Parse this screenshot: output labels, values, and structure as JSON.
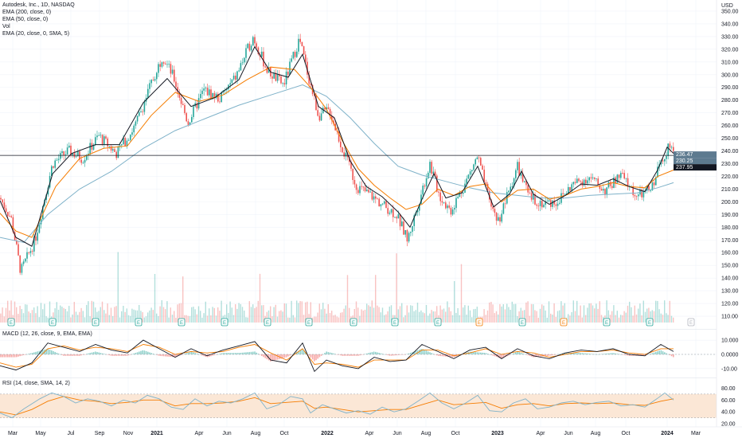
{
  "header": {
    "symbol_line": "Autodesk, Inc., 1D, NASDAQ",
    "ind_ema200": "EMA (200, close, 0)",
    "ind_ema50": "EMA (50, close, 0)",
    "ind_vol": "Vol",
    "ind_ema20": "EMA (20, close, 0, SMA, 5)",
    "macd_label": "MACD (12, 26, close, 9, EMA, EMA)",
    "rsi_label": "RSI (14, close, SMA, 14, 2)",
    "currency": "USD"
  },
  "colors": {
    "up": "#26a69a",
    "down": "#ef5350",
    "ema_fast": "#131722",
    "ema_mid": "#f57c00",
    "ema_slow": "#7fb2c9",
    "rsi_band": "#fbe7d6",
    "grid": "#f0f3fa",
    "event_earnings": "#26a69a",
    "event_other": "#f57c00",
    "price_tag": "#5d7a8f",
    "price_tag2": "#131722"
  },
  "chart_data": {
    "type": "candlestick",
    "price_axis": {
      "ticks": [
        "350.00",
        "340.00",
        "330.00",
        "320.00",
        "310.00",
        "300.00",
        "290.00",
        "280.00",
        "270.00",
        "260.00",
        "250.00",
        "240.00",
        "230.00",
        "220.00",
        "210.00",
        "200.00",
        "190.00",
        "180.00",
        "170.00",
        "160.00",
        "150.00",
        "140.00",
        "130.00",
        "120.00",
        "110.00"
      ],
      "range": [
        105,
        355
      ]
    },
    "x_axis": {
      "labels": [
        "Mar",
        "May",
        "Jul",
        "Sep",
        "Nov",
        "2021",
        "Apr",
        "Jun",
        "Aug",
        "Oct",
        "2022",
        "Apr",
        "Jun",
        "Aug",
        "Oct",
        "2023",
        "Apr",
        "Jun",
        "Aug",
        "Oct",
        "2024",
        "Mar"
      ],
      "bold": [
        "2021",
        "2022",
        "2023",
        "2024"
      ]
    },
    "price_tags": [
      "236.47",
      "230.25",
      "237.95"
    ],
    "horizontal_line": 236.5,
    "price_path": [
      [
        0,
        203
      ],
      [
        14,
        187
      ],
      [
        26,
        145
      ],
      [
        44,
        170
      ],
      [
        66,
        230
      ],
      [
        86,
        240
      ],
      [
        104,
        234
      ],
      [
        124,
        252
      ],
      [
        146,
        238
      ],
      [
        170,
        260
      ],
      [
        190,
        293
      ],
      [
        204,
        315
      ],
      [
        218,
        298
      ],
      [
        236,
        262
      ],
      [
        256,
        288
      ],
      [
        276,
        281
      ],
      [
        296,
        298
      ],
      [
        318,
        330
      ],
      [
        336,
        303
      ],
      [
        356,
        292
      ],
      [
        376,
        328
      ],
      [
        388,
        297
      ],
      [
        400,
        268
      ],
      [
        414,
        272
      ],
      [
        430,
        242
      ],
      [
        448,
        212
      ],
      [
        466,
        205
      ],
      [
        482,
        197
      ],
      [
        498,
        190
      ],
      [
        512,
        170
      ],
      [
        524,
        196
      ],
      [
        540,
        230
      ],
      [
        552,
        205
      ],
      [
        566,
        193
      ],
      [
        584,
        214
      ],
      [
        600,
        236
      ],
      [
        614,
        201
      ],
      [
        626,
        185
      ],
      [
        638,
        206
      ],
      [
        650,
        228
      ],
      [
        664,
        204
      ],
      [
        680,
        199
      ],
      [
        700,
        200
      ],
      [
        720,
        214
      ],
      [
        740,
        219
      ],
      [
        760,
        209
      ],
      [
        780,
        221
      ],
      [
        800,
        204
      ],
      [
        818,
        210
      ],
      [
        830,
        232
      ],
      [
        840,
        244
      ],
      [
        846,
        236
      ]
    ],
    "ema_fast": [
      [
        0,
        201
      ],
      [
        20,
        172
      ],
      [
        40,
        165
      ],
      [
        66,
        222
      ],
      [
        90,
        238
      ],
      [
        120,
        245
      ],
      [
        150,
        245
      ],
      [
        180,
        278
      ],
      [
        210,
        297
      ],
      [
        240,
        275
      ],
      [
        270,
        282
      ],
      [
        300,
        296
      ],
      [
        320,
        322
      ],
      [
        340,
        302
      ],
      [
        362,
        298
      ],
      [
        380,
        316
      ],
      [
        400,
        275
      ],
      [
        420,
        266
      ],
      [
        440,
        232
      ],
      [
        460,
        212
      ],
      [
        480,
        204
      ],
      [
        500,
        192
      ],
      [
        515,
        180
      ],
      [
        530,
        202
      ],
      [
        545,
        222
      ],
      [
        560,
        203
      ],
      [
        580,
        207
      ],
      [
        600,
        228
      ],
      [
        620,
        196
      ],
      [
        640,
        206
      ],
      [
        655,
        224
      ],
      [
        670,
        206
      ],
      [
        690,
        198
      ],
      [
        710,
        205
      ],
      [
        730,
        214
      ],
      [
        750,
        213
      ],
      [
        770,
        218
      ],
      [
        790,
        212
      ],
      [
        810,
        208
      ],
      [
        826,
        225
      ],
      [
        838,
        243
      ],
      [
        846,
        238
      ]
    ],
    "ema_mid": [
      [
        0,
        191
      ],
      [
        20,
        177
      ],
      [
        40,
        172
      ],
      [
        70,
        212
      ],
      [
        100,
        234
      ],
      [
        130,
        242
      ],
      [
        160,
        244
      ],
      [
        190,
        268
      ],
      [
        220,
        286
      ],
      [
        250,
        279
      ],
      [
        280,
        284
      ],
      [
        310,
        296
      ],
      [
        340,
        306
      ],
      [
        370,
        304
      ],
      [
        390,
        290
      ],
      [
        410,
        273
      ],
      [
        430,
        248
      ],
      [
        450,
        226
      ],
      [
        470,
        213
      ],
      [
        490,
        203
      ],
      [
        510,
        194
      ],
      [
        530,
        198
      ],
      [
        550,
        210
      ],
      [
        570,
        205
      ],
      [
        590,
        212
      ],
      [
        610,
        214
      ],
      [
        630,
        200
      ],
      [
        650,
        209
      ],
      [
        670,
        210
      ],
      [
        690,
        202
      ],
      [
        710,
        205
      ],
      [
        730,
        210
      ],
      [
        750,
        212
      ],
      [
        770,
        215
      ],
      [
        790,
        212
      ],
      [
        810,
        211
      ],
      [
        826,
        220
      ],
      [
        846,
        225
      ]
    ],
    "ema_slow": [
      [
        0,
        172
      ],
      [
        30,
        168
      ],
      [
        60,
        190
      ],
      [
        100,
        210
      ],
      [
        140,
        224
      ],
      [
        180,
        242
      ],
      [
        220,
        256
      ],
      [
        260,
        266
      ],
      [
        300,
        276
      ],
      [
        340,
        284
      ],
      [
        380,
        292
      ],
      [
        410,
        283
      ],
      [
        440,
        266
      ],
      [
        470,
        246
      ],
      [
        500,
        228
      ],
      [
        530,
        221
      ],
      [
        560,
        216
      ],
      [
        590,
        211
      ],
      [
        620,
        207
      ],
      [
        650,
        205
      ],
      [
        680,
        203
      ],
      [
        710,
        203
      ],
      [
        740,
        205
      ],
      [
        770,
        206
      ],
      [
        800,
        207
      ],
      [
        826,
        211
      ],
      [
        846,
        215
      ]
    ],
    "macd": {
      "ticks": [
        "10.000",
        "0.0000",
        "-10.00"
      ],
      "macd_line": [
        [
          0,
          -8
        ],
        [
          20,
          -11
        ],
        [
          40,
          -6
        ],
        [
          60,
          8
        ],
        [
          80,
          5
        ],
        [
          100,
          2
        ],
        [
          120,
          7
        ],
        [
          140,
          3
        ],
        [
          160,
          1
        ],
        [
          180,
          10
        ],
        [
          200,
          4
        ],
        [
          220,
          -2
        ],
        [
          240,
          4
        ],
        [
          260,
          -1
        ],
        [
          280,
          3
        ],
        [
          300,
          6
        ],
        [
          320,
          9
        ],
        [
          340,
          -4
        ],
        [
          360,
          -6
        ],
        [
          380,
          8
        ],
        [
          395,
          -12
        ],
        [
          410,
          -4
        ],
        [
          430,
          -8
        ],
        [
          450,
          -10
        ],
        [
          470,
          -2
        ],
        [
          490,
          -5
        ],
        [
          510,
          -4
        ],
        [
          530,
          7
        ],
        [
          550,
          2
        ],
        [
          570,
          -3
        ],
        [
          590,
          3
        ],
        [
          610,
          5
        ],
        [
          630,
          -3
        ],
        [
          650,
          4
        ],
        [
          670,
          -1
        ],
        [
          690,
          -3
        ],
        [
          710,
          1
        ],
        [
          730,
          3
        ],
        [
          750,
          2
        ],
        [
          770,
          4
        ],
        [
          790,
          0
        ],
        [
          810,
          -1
        ],
        [
          830,
          7
        ],
        [
          846,
          2
        ]
      ],
      "signal_line": [
        [
          0,
          -6
        ],
        [
          20,
          -9
        ],
        [
          40,
          -7
        ],
        [
          60,
          4
        ],
        [
          80,
          6
        ],
        [
          100,
          3
        ],
        [
          120,
          5
        ],
        [
          140,
          4
        ],
        [
          160,
          2
        ],
        [
          180,
          7
        ],
        [
          200,
          5
        ],
        [
          220,
          0
        ],
        [
          240,
          2
        ],
        [
          260,
          1
        ],
        [
          280,
          2
        ],
        [
          300,
          5
        ],
        [
          320,
          7
        ],
        [
          340,
          1
        ],
        [
          360,
          -4
        ],
        [
          380,
          4
        ],
        [
          395,
          -7
        ],
        [
          410,
          -6
        ],
        [
          430,
          -7
        ],
        [
          450,
          -9
        ],
        [
          470,
          -4
        ],
        [
          490,
          -4
        ],
        [
          510,
          -4
        ],
        [
          530,
          3
        ],
        [
          550,
          3
        ],
        [
          570,
          -1
        ],
        [
          590,
          1
        ],
        [
          610,
          4
        ],
        [
          630,
          0
        ],
        [
          650,
          2
        ],
        [
          670,
          1
        ],
        [
          690,
          -2
        ],
        [
          710,
          0
        ],
        [
          730,
          2
        ],
        [
          750,
          2
        ],
        [
          770,
          3
        ],
        [
          790,
          1
        ],
        [
          810,
          0
        ],
        [
          830,
          4
        ],
        [
          846,
          4
        ]
      ]
    },
    "rsi": {
      "ticks": [
        "80.00",
        "60.00",
        "40.00",
        "20.00"
      ],
      "band": [
        30,
        70
      ],
      "rsi_line": [
        [
          0,
          38
        ],
        [
          15,
          30
        ],
        [
          30,
          45
        ],
        [
          50,
          62
        ],
        [
          65,
          72
        ],
        [
          80,
          66
        ],
        [
          95,
          55
        ],
        [
          110,
          62
        ],
        [
          125,
          58
        ],
        [
          140,
          50
        ],
        [
          155,
          60
        ],
        [
          170,
          55
        ],
        [
          185,
          68
        ],
        [
          200,
          62
        ],
        [
          215,
          48
        ],
        [
          230,
          44
        ],
        [
          245,
          62
        ],
        [
          260,
          50
        ],
        [
          275,
          58
        ],
        [
          290,
          55
        ],
        [
          305,
          62
        ],
        [
          320,
          72
        ],
        [
          335,
          45
        ],
        [
          350,
          52
        ],
        [
          365,
          66
        ],
        [
          380,
          62
        ],
        [
          390,
          38
        ],
        [
          405,
          52
        ],
        [
          420,
          45
        ],
        [
          435,
          38
        ],
        [
          450,
          42
        ],
        [
          465,
          36
        ],
        [
          480,
          48
        ],
        [
          495,
          40
        ],
        [
          510,
          45
        ],
        [
          525,
          58
        ],
        [
          540,
          72
        ],
        [
          555,
          55
        ],
        [
          570,
          45
        ],
        [
          585,
          55
        ],
        [
          600,
          68
        ],
        [
          615,
          42
        ],
        [
          630,
          40
        ],
        [
          645,
          55
        ],
        [
          660,
          62
        ],
        [
          675,
          45
        ],
        [
          690,
          48
        ],
        [
          705,
          55
        ],
        [
          720,
          58
        ],
        [
          735,
          52
        ],
        [
          750,
          56
        ],
        [
          765,
          58
        ],
        [
          780,
          50
        ],
        [
          795,
          52
        ],
        [
          810,
          48
        ],
        [
          825,
          62
        ],
        [
          835,
          72
        ],
        [
          846,
          60
        ]
      ],
      "signal_line": [
        [
          0,
          40
        ],
        [
          20,
          35
        ],
        [
          40,
          44
        ],
        [
          60,
          58
        ],
        [
          80,
          66
        ],
        [
          100,
          60
        ],
        [
          120,
          58
        ],
        [
          140,
          54
        ],
        [
          160,
          56
        ],
        [
          180,
          60
        ],
        [
          200,
          60
        ],
        [
          220,
          50
        ],
        [
          240,
          54
        ],
        [
          260,
          54
        ],
        [
          280,
          55
        ],
        [
          300,
          58
        ],
        [
          320,
          64
        ],
        [
          340,
          54
        ],
        [
          360,
          56
        ],
        [
          380,
          58
        ],
        [
          395,
          46
        ],
        [
          410,
          48
        ],
        [
          430,
          44
        ],
        [
          450,
          40
        ],
        [
          470,
          42
        ],
        [
          490,
          44
        ],
        [
          510,
          44
        ],
        [
          530,
          52
        ],
        [
          550,
          60
        ],
        [
          570,
          52
        ],
        [
          590,
          54
        ],
        [
          610,
          56
        ],
        [
          630,
          46
        ],
        [
          650,
          52
        ],
        [
          670,
          54
        ],
        [
          690,
          50
        ],
        [
          710,
          54
        ],
        [
          730,
          55
        ],
        [
          750,
          54
        ],
        [
          770,
          55
        ],
        [
          790,
          52
        ],
        [
          810,
          51
        ],
        [
          830,
          58
        ],
        [
          846,
          62
        ]
      ]
    },
    "events": [
      {
        "x": 14,
        "label": "E",
        "kind": "earnings"
      },
      {
        "x": 66,
        "label": "E",
        "kind": "earnings"
      },
      {
        "x": 120,
        "label": "E",
        "kind": "earnings"
      },
      {
        "x": 174,
        "label": "E",
        "kind": "earnings"
      },
      {
        "x": 228,
        "label": "E",
        "kind": "earnings"
      },
      {
        "x": 282,
        "label": "E",
        "kind": "earnings"
      },
      {
        "x": 336,
        "label": "E",
        "kind": "earnings"
      },
      {
        "x": 388,
        "label": "E",
        "kind": "earnings"
      },
      {
        "x": 444,
        "label": "E",
        "kind": "earnings"
      },
      {
        "x": 496,
        "label": "E",
        "kind": "earnings"
      },
      {
        "x": 550,
        "label": "E",
        "kind": "earnings"
      },
      {
        "x": 602,
        "label": "E",
        "kind": "other"
      },
      {
        "x": 656,
        "label": "E",
        "kind": "earnings"
      },
      {
        "x": 708,
        "label": "E",
        "kind": "other"
      },
      {
        "x": 762,
        "label": "E",
        "kind": "earnings"
      },
      {
        "x": 816,
        "label": "E",
        "kind": "earnings"
      },
      {
        "x": 868,
        "label": "E",
        "kind": "future"
      }
    ]
  }
}
